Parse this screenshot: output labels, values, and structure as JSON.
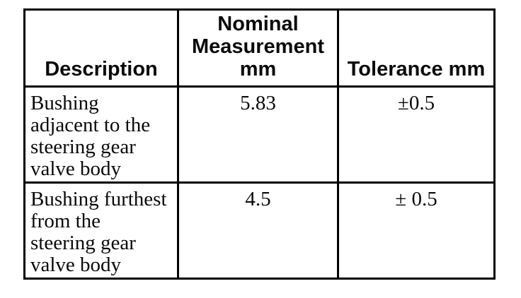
{
  "table": {
    "headers": [
      "Description",
      "Nominal\nMeasurement\nmm",
      "Tolerance mm"
    ],
    "rows": [
      {
        "description": "Bushing\nadjacent to the\nsteering gear\nvalve body",
        "nominal": "5.83",
        "tolerance": "±0.5"
      },
      {
        "description": "Bushing furthest\nfrom the\nsteering gear\nvalve body",
        "nominal": "4.5",
        "tolerance": "± 0.5"
      }
    ],
    "colors": {
      "border": "#000000",
      "text": "#0a0a0a",
      "background": "#ffffff"
    }
  }
}
